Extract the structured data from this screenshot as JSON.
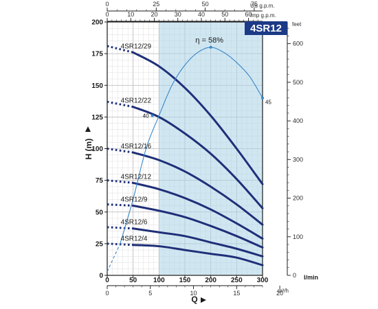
{
  "chart_data": {
    "type": "line",
    "title": "4SR12",
    "xlabel": "Q",
    "ylabel": "H (m)",
    "x_unit": "l/min",
    "xlim": [
      0,
      300
    ],
    "ylim": [
      0,
      200
    ],
    "x_ticks": [
      "0",
      "50",
      "100",
      "150",
      "200",
      "250",
      "300"
    ],
    "y_ticks": [
      "0",
      "25",
      "50",
      "75",
      "100",
      "125",
      "150",
      "175",
      "200"
    ],
    "operating_range": [
      100,
      300
    ],
    "top_axes": [
      {
        "unit": "US g.p.m.",
        "ticks": [
          "0",
          "25",
          "50",
          "75"
        ],
        "factor": 0.264172
      },
      {
        "unit": "Imp g.p.m.",
        "ticks": [
          "0",
          "10",
          "20",
          "30",
          "40",
          "50",
          "60"
        ],
        "factor": 0.219969
      }
    ],
    "bottom_axis": {
      "unit": "m³/h",
      "ticks": [
        "0",
        "5",
        "10",
        "15",
        "20"
      ],
      "factor": 0.06
    },
    "right_axis": {
      "unit": "feet",
      "ticks": [
        "0",
        "100",
        "200",
        "300",
        "400",
        "500",
        "600"
      ],
      "factor": 3.28084
    },
    "series": [
      {
        "name": "4SR12/29",
        "x": [
          0,
          50,
          100,
          150,
          200,
          250,
          300
        ],
        "values": [
          181,
          176,
          165,
          148,
          126,
          100,
          72
        ]
      },
      {
        "name": "4SR12/22",
        "x": [
          0,
          50,
          100,
          150,
          200,
          250,
          300
        ],
        "values": [
          137,
          133,
          125,
          112,
          96,
          76,
          53
        ]
      },
      {
        "name": "4SR12/16",
        "x": [
          0,
          50,
          100,
          150,
          200,
          250,
          300
        ],
        "values": [
          100,
          97,
          91,
          82,
          70,
          56,
          40
        ]
      },
      {
        "name": "4SR12/12",
        "x": [
          0,
          50,
          100,
          150,
          200,
          250,
          300
        ],
        "values": [
          75,
          73,
          68,
          61,
          52,
          41,
          29
        ]
      },
      {
        "name": "4SR12/9",
        "x": [
          0,
          50,
          100,
          150,
          200,
          250,
          300
        ],
        "values": [
          56,
          55,
          51,
          46,
          39,
          31,
          22
        ]
      },
      {
        "name": "4SR12/6",
        "x": [
          0,
          50,
          100,
          150,
          200,
          250,
          300
        ],
        "values": [
          38,
          37,
          34,
          31,
          26,
          21,
          15
        ]
      },
      {
        "name": "4SR12/4",
        "x": [
          0,
          50,
          100,
          150,
          200,
          250,
          300
        ],
        "values": [
          25,
          24,
          23,
          20,
          17,
          14,
          8
        ]
      }
    ],
    "efficiency": {
      "label": "η = 58%",
      "x": [
        0,
        25,
        50,
        75,
        100,
        125,
        150,
        175,
        200,
        225,
        250,
        275,
        300
      ],
      "values": [
        3,
        25,
        60,
        100,
        126,
        150,
        166,
        176,
        180,
        176,
        168,
        157,
        140
      ],
      "point_labels": [
        {
          "x": 87,
          "y": 126,
          "text": "40"
        },
        {
          "x": 300,
          "y": 140,
          "text": "45"
        }
      ]
    }
  }
}
